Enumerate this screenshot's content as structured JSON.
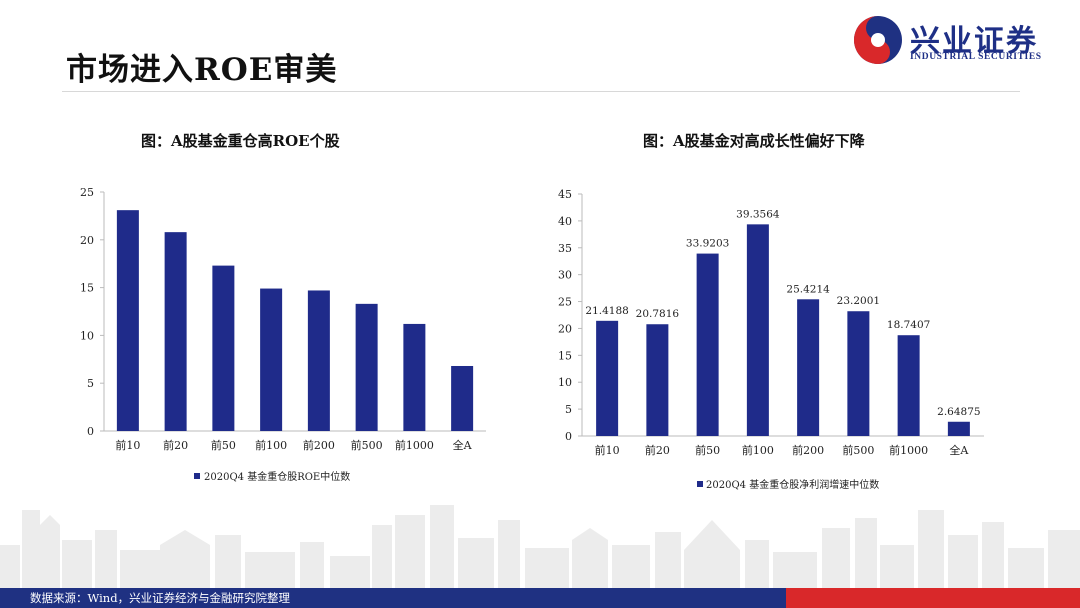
{
  "page": {
    "title": "市场进入ROE审美",
    "logo_name": "兴业证券",
    "logo_sub": "INDUSTRIAL SECURITIES",
    "footer_source": "数据来源：Wind，兴业证券经济与金融研究院整理",
    "colors": {
      "bar": "#1f2b8a",
      "brand_blue": "#1f3182",
      "brand_red": "#d9282a"
    }
  },
  "chart_data": [
    {
      "type": "bar",
      "title": "图：A股基金重仓高ROE个股",
      "categories": [
        "前10",
        "前20",
        "前50",
        "前100",
        "前200",
        "前500",
        "前1000",
        "全A"
      ],
      "series": [
        {
          "name": "2020Q4 基金重仓股ROE中位数",
          "values": [
            23.1,
            20.8,
            17.3,
            14.9,
            14.7,
            13.3,
            11.2,
            6.8
          ]
        }
      ],
      "ylim": [
        0,
        25
      ],
      "yticks": [
        0,
        5,
        10,
        15,
        20,
        25
      ],
      "data_labels": false,
      "legend_position": "bottom"
    },
    {
      "type": "bar",
      "title": "图：A股基金对高成长性偏好下降",
      "categories": [
        "前10",
        "前20",
        "前50",
        "前100",
        "前200",
        "前500",
        "前1000",
        "全A"
      ],
      "series": [
        {
          "name": "2020Q4 基金重仓股净利润增速中位数",
          "values": [
            21.4188,
            20.7816,
            33.9203,
            39.3564,
            25.4214,
            23.2001,
            18.7407,
            2.64875
          ]
        }
      ],
      "ylim": [
        0,
        45
      ],
      "yticks": [
        0,
        5,
        10,
        15,
        20,
        25,
        30,
        35,
        40,
        45
      ],
      "data_labels": true,
      "legend_position": "bottom"
    }
  ]
}
